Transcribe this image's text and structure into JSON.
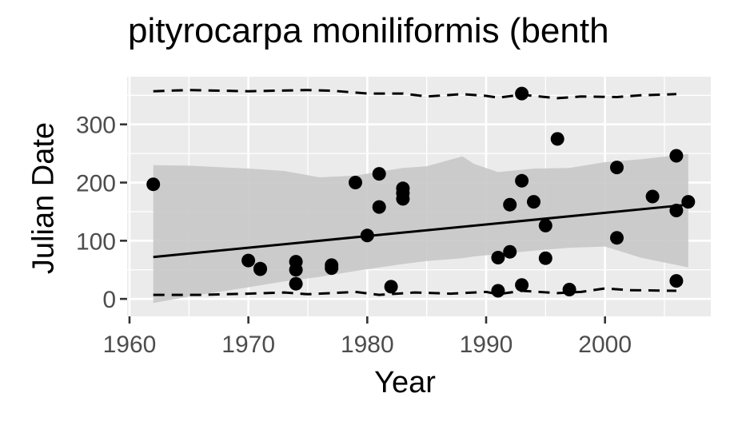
{
  "chart_data": {
    "type": "scatter",
    "title": "pityrocarpa moniliformis (benth",
    "xlabel": "Year",
    "ylabel": "Julian Date",
    "xlim": [
      1959.8,
      2008.9
    ],
    "ylim": [
      -30,
      382
    ],
    "x_ticks": [
      1960,
      1970,
      1980,
      1990,
      2000
    ],
    "y_ticks": [
      0,
      100,
      200,
      300
    ],
    "grid": true,
    "legend": "none",
    "colors": {
      "panel": "#ebebeb",
      "grid": "#ffffff",
      "points": "#000000",
      "ribbon": "#c8c8c8",
      "tick_label": "#4d4d4d"
    },
    "points": [
      [
        1962,
        197
      ],
      [
        1970,
        66
      ],
      [
        1971,
        52
      ],
      [
        1971,
        51
      ],
      [
        1974,
        64
      ],
      [
        1974,
        50
      ],
      [
        1974,
        26
      ],
      [
        1977,
        58
      ],
      [
        1977,
        53
      ],
      [
        1979,
        200
      ],
      [
        1980,
        109
      ],
      [
        1981,
        215
      ],
      [
        1981,
        158
      ],
      [
        1982,
        21
      ],
      [
        1983,
        190
      ],
      [
        1983,
        182
      ],
      [
        1983,
        172
      ],
      [
        1991,
        71
      ],
      [
        1991,
        14
      ],
      [
        1992,
        81
      ],
      [
        1992,
        162
      ],
      [
        1993,
        353
      ],
      [
        1993,
        203
      ],
      [
        1993,
        24
      ],
      [
        1994,
        167
      ],
      [
        1995,
        126
      ],
      [
        1995,
        70
      ],
      [
        1996,
        275
      ],
      [
        1997,
        16
      ],
      [
        2001,
        226
      ],
      [
        2001,
        105
      ],
      [
        2004,
        176
      ],
      [
        2006,
        246
      ],
      [
        2006,
        152
      ],
      [
        2006,
        31
      ],
      [
        2007,
        167
      ]
    ],
    "trend_line": {
      "x": [
        1962,
        2007
      ],
      "y": [
        72,
        162
      ]
    },
    "ribbon": {
      "x": [
        1962,
        1965,
        1970,
        1973,
        1976,
        1979,
        1983,
        1985,
        1988,
        1989,
        1991,
        1994,
        1997,
        2000,
        2003,
        2007
      ],
      "upper": [
        230,
        229,
        224,
        220,
        209,
        212,
        225,
        228,
        245,
        232,
        218,
        224,
        225,
        235,
        240,
        249
      ],
      "lower": [
        -7,
        4,
        20,
        30,
        38,
        48,
        60,
        65,
        70,
        73,
        77,
        83,
        88,
        90,
        71,
        54
      ]
    },
    "upper_dashed": {
      "x": [
        1962,
        1965,
        1970,
        1975,
        1977,
        1980,
        1983,
        1985,
        1988,
        1990,
        1991,
        1993,
        1996,
        1998,
        2001,
        2003,
        2006
      ],
      "y": [
        357,
        359,
        357,
        359,
        358,
        353,
        353,
        348,
        352,
        349,
        346,
        351,
        345,
        348,
        347,
        350,
        352
      ]
    },
    "lower_dashed": {
      "x": [
        1962,
        1966,
        1970,
        1973,
        1975,
        1977,
        1979,
        1981,
        1984,
        1987,
        1990,
        1991,
        1993,
        1996,
        1998,
        2000,
        2002,
        2006
      ],
      "y": [
        7,
        7,
        9,
        11,
        8,
        10,
        12,
        7,
        11,
        9,
        12,
        8,
        14,
        10,
        12,
        18,
        15,
        14
      ]
    }
  }
}
